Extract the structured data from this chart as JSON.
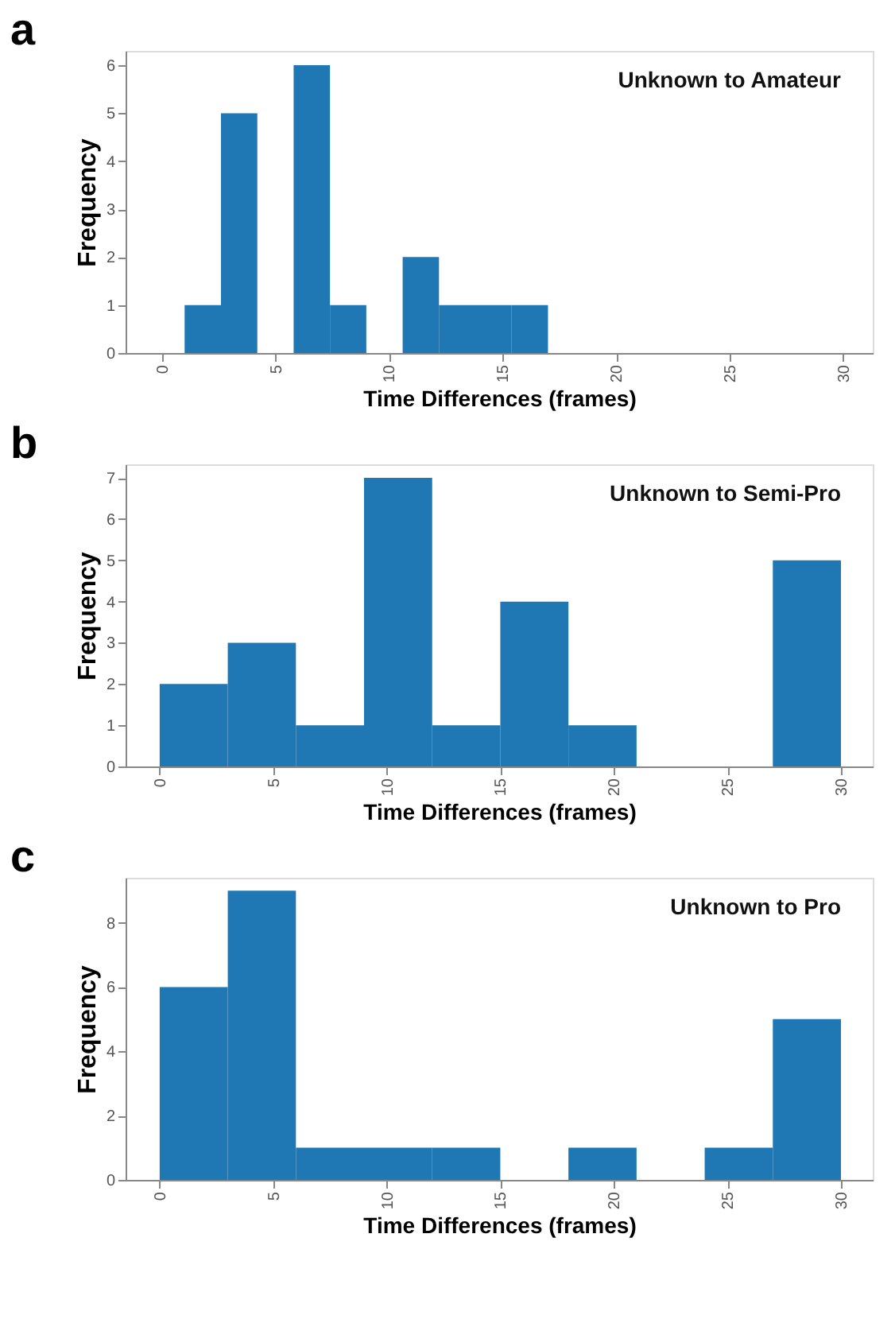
{
  "chart_data": [
    {
      "type": "histogram",
      "title": "a",
      "annotations": [
        "Unknown to Amateur"
      ],
      "xlabel": "Time Differences  (frames)",
      "ylabel": "Frequency",
      "color": "#1f77b4",
      "bins": [
        1,
        2.6,
        4.2,
        5.8,
        7.4,
        9,
        10.6,
        12.2,
        13.8,
        15.4,
        17
      ],
      "values": [
        1,
        5,
        0,
        6,
        1,
        0,
        2,
        1,
        1,
        1
      ],
      "xlim": [
        -1.6,
        31.3
      ],
      "xticks": [
        0,
        5,
        10,
        15,
        20,
        25,
        30
      ],
      "ylim": [
        0,
        6.3
      ],
      "yticks": [
        0,
        1,
        2,
        3,
        4,
        5,
        6
      ],
      "grid": false,
      "legend": false
    },
    {
      "type": "histogram",
      "title": "b",
      "annotations": [
        "Unknown to Semi-Pro"
      ],
      "xlabel": "Time Differences (frames)",
      "ylabel": "Frequency",
      "color": "#1f77b4",
      "bins": [
        0,
        3,
        6,
        9,
        12,
        15,
        18,
        21,
        24,
        27,
        30
      ],
      "values": [
        2,
        3,
        1,
        7,
        1,
        4,
        1,
        0,
        0,
        5
      ],
      "xlim": [
        -1.5,
        31.4
      ],
      "xticks": [
        0,
        5,
        10,
        15,
        20,
        25,
        30
      ],
      "ylim": [
        0,
        7.33
      ],
      "yticks": [
        0,
        1,
        2,
        3,
        4,
        5,
        6,
        7
      ],
      "grid": false,
      "legend": false
    },
    {
      "type": "histogram",
      "title": "c",
      "annotations": [
        "Unknown to Pro"
      ],
      "xlabel": "Time Differences  (frames)",
      "ylabel": "Frequency",
      "color": "#1f77b4",
      "bins": [
        0,
        3,
        6,
        9,
        12,
        15,
        18,
        21,
        24,
        27,
        30
      ],
      "values": [
        6,
        9,
        1,
        1,
        1,
        0,
        1,
        0,
        1,
        5
      ],
      "xlim": [
        -1.5,
        31.4
      ],
      "xticks": [
        0,
        5,
        10,
        15,
        20,
        25,
        30
      ],
      "ylim": [
        0,
        9.4
      ],
      "yticks": [
        0,
        2,
        4,
        6,
        8
      ],
      "grid": false,
      "legend": false
    }
  ]
}
